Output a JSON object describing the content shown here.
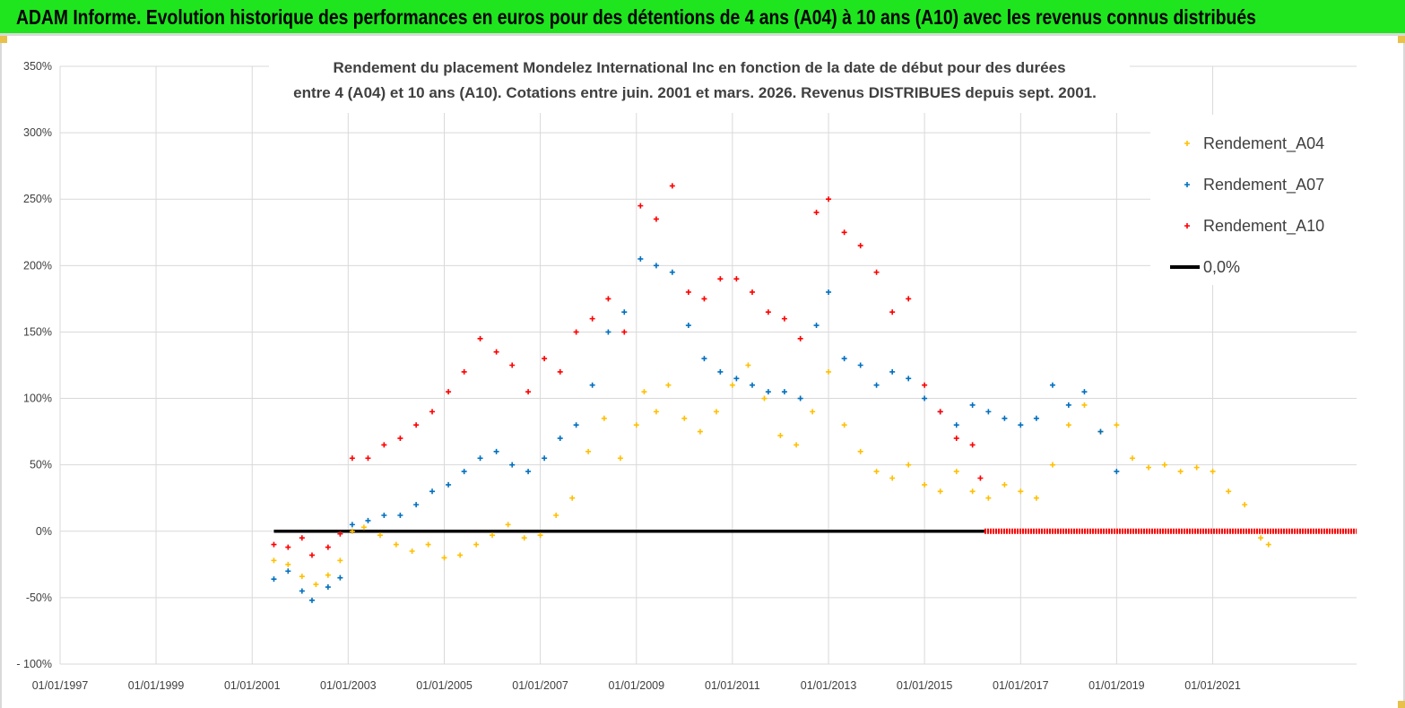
{
  "banner": {
    "title": "ADAM Informe. Evolution historique des performances en euros pour des détentions de 4 ans (A04) à 10 ans (A10) avec les revenus connus distribués",
    "background": "#1fe51f"
  },
  "chart_data": {
    "type": "scatter",
    "title_line1": "Rendement du placement Mondelez International Inc en fonction de la date de début pour des durées",
    "title_line2": "entre 4 (A04) et 10 ans (A10).  Cotations entre juin. 2001 et mars. 2026. Revenus DISTRIBUES depuis sept. 2001.",
    "xlabel": "",
    "ylabel": "",
    "xlim": [
      "1997-01-01",
      "2023-12-31"
    ],
    "ylim": [
      -100,
      350
    ],
    "x_ticks": [
      "01/01/1997",
      "01/01/1999",
      "01/01/2001",
      "01/01/2003",
      "01/01/2005",
      "01/01/2007",
      "01/01/2009",
      "01/01/2011",
      "01/01/2013",
      "01/01/2015",
      "01/01/2017",
      "01/01/2019",
      "01/01/2021"
    ],
    "y_ticks": [
      "- 100%",
      "-50%",
      "0%",
      "50%",
      "100%",
      "150%",
      "200%",
      "250%",
      "300%",
      "350%"
    ],
    "y_tick_values": [
      -100,
      -50,
      0,
      50,
      100,
      150,
      200,
      250,
      300,
      350
    ],
    "grid": true,
    "legend_position": "top-right",
    "series": [
      {
        "name": "Rendement_A04",
        "color": "#ffc000",
        "marker": "+",
        "points": [
          [
            "2001-06-15",
            -22
          ],
          [
            "2001-10-01",
            -25
          ],
          [
            "2002-01-15",
            -34
          ],
          [
            "2002-05-01",
            -40
          ],
          [
            "2002-08-01",
            -33
          ],
          [
            "2002-11-01",
            -22
          ],
          [
            "2003-02-01",
            0
          ],
          [
            "2003-05-01",
            3
          ],
          [
            "2003-09-01",
            -3
          ],
          [
            "2004-01-01",
            -10
          ],
          [
            "2004-05-01",
            -15
          ],
          [
            "2004-09-01",
            -10
          ],
          [
            "2005-01-01",
            -20
          ],
          [
            "2005-05-01",
            -18
          ],
          [
            "2005-09-01",
            -10
          ],
          [
            "2006-01-01",
            -3
          ],
          [
            "2006-05-01",
            5
          ],
          [
            "2006-09-01",
            -5
          ],
          [
            "2007-01-01",
            -3
          ],
          [
            "2007-05-01",
            12
          ],
          [
            "2007-09-01",
            25
          ],
          [
            "2008-01-01",
            60
          ],
          [
            "2008-05-01",
            85
          ],
          [
            "2008-09-01",
            55
          ],
          [
            "2009-01-01",
            80
          ],
          [
            "2009-03-01",
            105
          ],
          [
            "2009-06-01",
            90
          ],
          [
            "2009-09-01",
            110
          ],
          [
            "2010-01-01",
            85
          ],
          [
            "2010-05-01",
            75
          ],
          [
            "2010-09-01",
            90
          ],
          [
            "2011-01-01",
            110
          ],
          [
            "2011-05-01",
            125
          ],
          [
            "2011-09-01",
            100
          ],
          [
            "2012-01-01",
            72
          ],
          [
            "2012-05-01",
            65
          ],
          [
            "2012-09-01",
            90
          ],
          [
            "2013-01-01",
            120
          ],
          [
            "2013-05-01",
            80
          ],
          [
            "2013-09-01",
            60
          ],
          [
            "2014-01-01",
            45
          ],
          [
            "2014-05-01",
            40
          ],
          [
            "2014-09-01",
            50
          ],
          [
            "2015-01-01",
            35
          ],
          [
            "2015-05-01",
            30
          ],
          [
            "2015-09-01",
            45
          ],
          [
            "2016-01-01",
            30
          ],
          [
            "2016-05-01",
            25
          ],
          [
            "2016-09-01",
            35
          ],
          [
            "2017-01-01",
            30
          ],
          [
            "2017-05-01",
            25
          ],
          [
            "2017-09-01",
            50
          ],
          [
            "2018-01-01",
            80
          ],
          [
            "2018-05-01",
            95
          ],
          [
            "2018-09-01",
            75
          ],
          [
            "2019-01-01",
            80
          ],
          [
            "2019-05-01",
            55
          ],
          [
            "2019-09-01",
            48
          ],
          [
            "2020-01-01",
            50
          ],
          [
            "2020-05-01",
            45
          ],
          [
            "2020-09-01",
            48
          ],
          [
            "2021-01-01",
            45
          ],
          [
            "2021-05-01",
            30
          ],
          [
            "2021-09-01",
            20
          ],
          [
            "2022-01-01",
            -5
          ],
          [
            "2022-03-01",
            -10
          ]
        ]
      },
      {
        "name": "Rendement_A07",
        "color": "#0070c0",
        "marker": "+",
        "points": [
          [
            "2001-06-15",
            -36
          ],
          [
            "2001-10-01",
            -30
          ],
          [
            "2002-01-15",
            -45
          ],
          [
            "2002-04-01",
            -52
          ],
          [
            "2002-08-01",
            -42
          ],
          [
            "2002-11-01",
            -35
          ],
          [
            "2003-02-01",
            5
          ],
          [
            "2003-06-01",
            8
          ],
          [
            "2003-10-01",
            12
          ],
          [
            "2004-02-01",
            12
          ],
          [
            "2004-06-01",
            20
          ],
          [
            "2004-10-01",
            30
          ],
          [
            "2005-02-01",
            35
          ],
          [
            "2005-06-01",
            45
          ],
          [
            "2005-10-01",
            55
          ],
          [
            "2006-02-01",
            60
          ],
          [
            "2006-06-01",
            50
          ],
          [
            "2006-10-01",
            45
          ],
          [
            "2007-02-01",
            55
          ],
          [
            "2007-06-01",
            70
          ],
          [
            "2007-10-01",
            80
          ],
          [
            "2008-02-01",
            110
          ],
          [
            "2008-06-01",
            150
          ],
          [
            "2008-10-01",
            165
          ],
          [
            "2009-02-01",
            205
          ],
          [
            "2009-06-01",
            200
          ],
          [
            "2009-10-01",
            195
          ],
          [
            "2010-02-01",
            155
          ],
          [
            "2010-06-01",
            130
          ],
          [
            "2010-10-01",
            120
          ],
          [
            "2011-02-01",
            115
          ],
          [
            "2011-06-01",
            110
          ],
          [
            "2011-10-01",
            105
          ],
          [
            "2012-02-01",
            105
          ],
          [
            "2012-06-01",
            100
          ],
          [
            "2012-10-01",
            155
          ],
          [
            "2013-01-01",
            180
          ],
          [
            "2013-05-01",
            130
          ],
          [
            "2013-09-01",
            125
          ],
          [
            "2014-01-01",
            110
          ],
          [
            "2014-05-01",
            120
          ],
          [
            "2014-09-01",
            115
          ],
          [
            "2015-01-01",
            100
          ],
          [
            "2015-05-01",
            90
          ],
          [
            "2015-09-01",
            80
          ],
          [
            "2016-01-01",
            95
          ],
          [
            "2016-05-01",
            90
          ],
          [
            "2016-09-01",
            85
          ],
          [
            "2017-01-01",
            80
          ],
          [
            "2017-05-01",
            85
          ],
          [
            "2017-09-01",
            110
          ],
          [
            "2018-01-01",
            95
          ],
          [
            "2018-05-01",
            105
          ],
          [
            "2018-09-01",
            75
          ],
          [
            "2019-01-01",
            45
          ]
        ]
      },
      {
        "name": "Rendement_A10",
        "color": "#ff0000",
        "marker": "+",
        "points": [
          [
            "2001-06-15",
            -10
          ],
          [
            "2001-10-01",
            -12
          ],
          [
            "2002-01-15",
            -5
          ],
          [
            "2002-04-01",
            -18
          ],
          [
            "2002-08-01",
            -12
          ],
          [
            "2002-11-01",
            -2
          ],
          [
            "2003-02-01",
            55
          ],
          [
            "2003-06-01",
            55
          ],
          [
            "2003-10-01",
            65
          ],
          [
            "2004-02-01",
            70
          ],
          [
            "2004-06-01",
            80
          ],
          [
            "2004-10-01",
            90
          ],
          [
            "2005-02-01",
            105
          ],
          [
            "2005-06-01",
            120
          ],
          [
            "2005-10-01",
            145
          ],
          [
            "2006-02-01",
            135
          ],
          [
            "2006-06-01",
            125
          ],
          [
            "2006-10-01",
            105
          ],
          [
            "2007-02-01",
            130
          ],
          [
            "2007-06-01",
            120
          ],
          [
            "2007-10-01",
            150
          ],
          [
            "2008-02-01",
            160
          ],
          [
            "2008-06-01",
            175
          ],
          [
            "2008-10-01",
            150
          ],
          [
            "2009-02-01",
            245
          ],
          [
            "2009-06-01",
            235
          ],
          [
            "2009-10-01",
            260
          ],
          [
            "2010-02-01",
            180
          ],
          [
            "2010-06-01",
            175
          ],
          [
            "2010-10-01",
            190
          ],
          [
            "2011-02-01",
            190
          ],
          [
            "2011-06-01",
            180
          ],
          [
            "2011-10-01",
            165
          ],
          [
            "2012-02-01",
            160
          ],
          [
            "2012-06-01",
            145
          ],
          [
            "2012-10-01",
            240
          ],
          [
            "2013-01-01",
            250
          ],
          [
            "2013-05-01",
            225
          ],
          [
            "2013-09-01",
            215
          ],
          [
            "2014-01-01",
            195
          ],
          [
            "2014-05-01",
            165
          ],
          [
            "2014-09-01",
            175
          ],
          [
            "2015-01-01",
            110
          ],
          [
            "2015-05-01",
            90
          ],
          [
            "2015-09-01",
            70
          ],
          [
            "2016-01-01",
            65
          ],
          [
            "2016-03-01",
            40
          ]
        ]
      }
    ],
    "zero_line": {
      "name": "0,0%",
      "color": "#000000",
      "value": 0,
      "x_start": "2001-06-15",
      "x_end": "2016-03-31"
    },
    "red_zero_band": {
      "color": "#ff0000",
      "x_start": "2016-04-01",
      "x_end": "2023-12-31"
    }
  }
}
